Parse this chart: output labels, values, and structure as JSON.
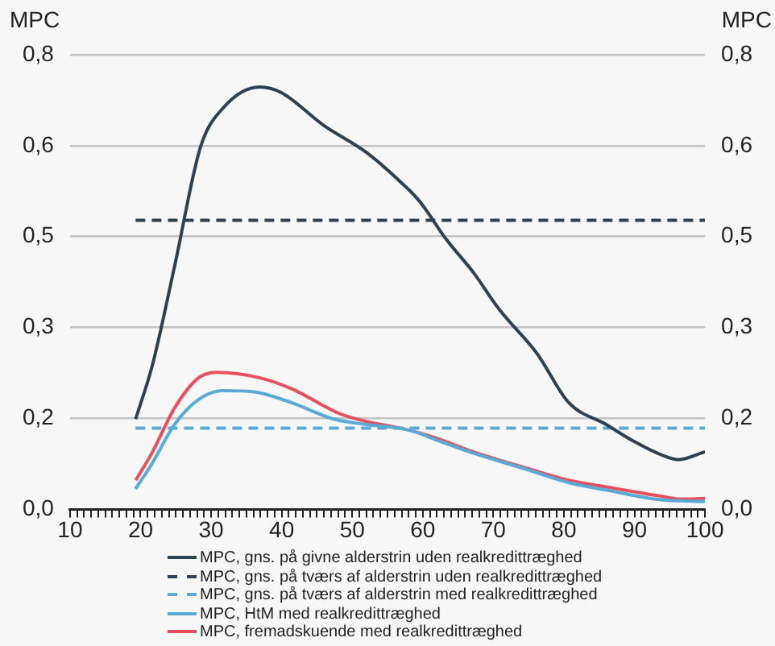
{
  "chart_data": {
    "type": "line",
    "ylabel": "MPC",
    "y2label": "MPC",
    "xlim": [
      10,
      100
    ],
    "xticks": [
      10,
      {
        "value": 11,
        "label": null
      },
      {
        "value": 12,
        "label": null
      },
      {
        "value": 13,
        "label": null
      },
      {
        "value": 14,
        "label": null
      },
      {
        "value": 15,
        "label": null
      },
      {
        "value": 16,
        "label": null
      },
      {
        "value": 17,
        "label": null
      },
      {
        "value": 18,
        "label": null
      },
      {
        "value": 19,
        "label": null
      },
      20,
      {
        "value": 21,
        "label": null
      },
      {
        "value": 22,
        "label": null
      },
      {
        "value": 23,
        "label": null
      },
      {
        "value": 24,
        "label": null
      },
      {
        "value": 25,
        "label": null
      },
      {
        "value": 26,
        "label": null
      },
      {
        "value": 27,
        "label": null
      },
      {
        "value": 28,
        "label": null
      },
      {
        "value": 29,
        "label": null
      },
      30,
      {
        "value": 31,
        "label": null
      },
      {
        "value": 32,
        "label": null
      },
      {
        "value": 33,
        "label": null
      },
      {
        "value": 34,
        "label": null
      },
      {
        "value": 35,
        "label": null
      },
      {
        "value": 36,
        "label": null
      },
      {
        "value": 37,
        "label": null
      },
      {
        "value": 38,
        "label": null
      },
      {
        "value": 39,
        "label": null
      },
      40,
      {
        "value": 41,
        "label": null
      },
      {
        "value": 42,
        "label": null
      },
      {
        "value": 43,
        "label": null
      },
      {
        "value": 44,
        "label": null
      },
      {
        "value": 45,
        "label": null
      },
      {
        "value": 46,
        "label": null
      },
      {
        "value": 47,
        "label": null
      },
      {
        "value": 48,
        "label": null
      },
      {
        "value": 49,
        "label": null
      },
      50,
      {
        "value": 51,
        "label": null
      },
      {
        "value": 52,
        "label": null
      },
      {
        "value": 53,
        "label": null
      },
      {
        "value": 54,
        "label": null
      },
      {
        "value": 55,
        "label": null
      },
      {
        "value": 56,
        "label": null
      },
      {
        "value": 57,
        "label": null
      },
      {
        "value": 58,
        "label": null
      },
      {
        "value": 59,
        "label": null
      },
      60,
      {
        "value": 61,
        "label": null
      },
      {
        "value": 62,
        "label": null
      },
      {
        "value": 63,
        "label": null
      },
      {
        "value": 64,
        "label": null
      },
      {
        "value": 65,
        "label": null
      },
      {
        "value": 66,
        "label": null
      },
      {
        "value": 67,
        "label": null
      },
      {
        "value": 68,
        "label": null
      },
      {
        "value": 69,
        "label": null
      },
      70,
      {
        "value": 71,
        "label": null
      },
      {
        "value": 72,
        "label": null
      },
      {
        "value": 73,
        "label": null
      },
      {
        "value": 74,
        "label": null
      },
      {
        "value": 75,
        "label": null
      },
      {
        "value": 76,
        "label": null
      },
      {
        "value": 77,
        "label": null
      },
      {
        "value": 78,
        "label": null
      },
      {
        "value": 79,
        "label": null
      },
      80,
      {
        "value": 81,
        "label": null
      },
      {
        "value": 82,
        "label": null
      },
      {
        "value": 83,
        "label": null
      },
      {
        "value": 84,
        "label": null
      },
      {
        "value": 85,
        "label": null
      },
      {
        "value": 86,
        "label": null
      },
      {
        "value": 87,
        "label": null
      },
      {
        "value": 88,
        "label": null
      },
      {
        "value": 89,
        "label": null
      },
      90,
      {
        "value": 91,
        "label": null
      },
      {
        "value": 92,
        "label": null
      },
      {
        "value": 93,
        "label": null
      },
      {
        "value": 94,
        "label": null
      },
      {
        "value": 95,
        "label": null
      },
      {
        "value": 96,
        "label": null
      },
      {
        "value": 97,
        "label": null
      },
      {
        "value": 98,
        "label": null
      },
      {
        "value": 99,
        "label": null
      },
      100
    ],
    "ylim": [
      0,
      0.75
    ],
    "yticks": [
      {
        "value": 0,
        "label": "0,0"
      },
      {
        "value": 0.15,
        "label": "0,2"
      },
      {
        "value": 0.3,
        "label": "0,3"
      },
      {
        "value": 0.45,
        "label": "0,5"
      },
      {
        "value": 0.6,
        "label": "0,6"
      },
      {
        "value": 0.75,
        "label": "0,8"
      }
    ],
    "y2lim": [
      0,
      0.75
    ],
    "y2ticks": [
      {
        "value": 0,
        "label": "0,0"
      },
      {
        "value": 0.15,
        "label": "0,2"
      },
      {
        "value": 0.3,
        "label": "0,3"
      },
      {
        "value": 0.45,
        "label": "0,5"
      },
      {
        "value": 0.6,
        "label": "0,6"
      },
      {
        "value": 0.75,
        "label": "0,8"
      }
    ],
    "grid": "y",
    "legend": "bottom",
    "marker": "none",
    "series": [
      {
        "name": "MPC, gns. på givne alderstrin uden realkredittræghed",
        "color": "#2c4254",
        "line_style": "solid",
        "x": [
          19.3,
          21.7,
          24.8,
          28.5,
          31.6,
          36.9,
          39.9,
          45.9,
          52.0,
          56.5,
          59.5,
          63.3,
          67.1,
          70.9,
          76.2,
          80.7,
          86.0,
          89.8,
          93.6,
          96.2,
          100
        ],
        "values": [
          0.149,
          0.239,
          0.4,
          0.598,
          0.661,
          0.697,
          0.688,
          0.634,
          0.589,
          0.544,
          0.509,
          0.446,
          0.392,
          0.329,
          0.257,
          0.176,
          0.14,
          0.113,
          0.091,
          0.082,
          0.095
        ]
      },
      {
        "name": "MPC, gns. på tværs af alderstrin uden realkredittræghed",
        "color": "#2c4254",
        "line_style": "dashed",
        "x": [
          19.3,
          100
        ],
        "values": [
          0.477,
          0.477
        ]
      },
      {
        "name": "MPC, gns. på tværs af alderstrin med realkredittræghed",
        "color": "#5aaad6",
        "line_style": "dashed",
        "x": [
          19.3,
          100
        ],
        "values": [
          0.134,
          0.134
        ]
      },
      {
        "name": "MPC, HtM med realkredittræghed",
        "color": "#5aaad6",
        "line_style": "solid",
        "x": [
          19.3,
          21.7,
          24.8,
          28.2,
          31.6,
          36.1,
          41.4,
          47.4,
          52.0,
          58.0,
          61.8,
          67.1,
          74.7,
          80.7,
          86.0,
          93.6,
          100
        ],
        "values": [
          0.034,
          0.077,
          0.14,
          0.181,
          0.196,
          0.194,
          0.176,
          0.149,
          0.14,
          0.131,
          0.115,
          0.093,
          0.066,
          0.044,
          0.032,
          0.016,
          0.013
        ]
      },
      {
        "name": "MPC, fremadskuende med realkredittræghed",
        "color": "#e8505b",
        "line_style": "solid",
        "x": [
          19.3,
          21.7,
          24.8,
          28.2,
          30.8,
          36.9,
          41.4,
          48.2,
          52.0,
          58.0,
          61.8,
          67.1,
          74.7,
          80.7,
          86.0,
          93.6,
          96.6,
          100
        ],
        "values": [
          0.048,
          0.095,
          0.167,
          0.217,
          0.226,
          0.217,
          0.199,
          0.158,
          0.145,
          0.131,
          0.118,
          0.095,
          0.068,
          0.048,
          0.037,
          0.022,
          0.017,
          0.018
        ]
      }
    ]
  }
}
